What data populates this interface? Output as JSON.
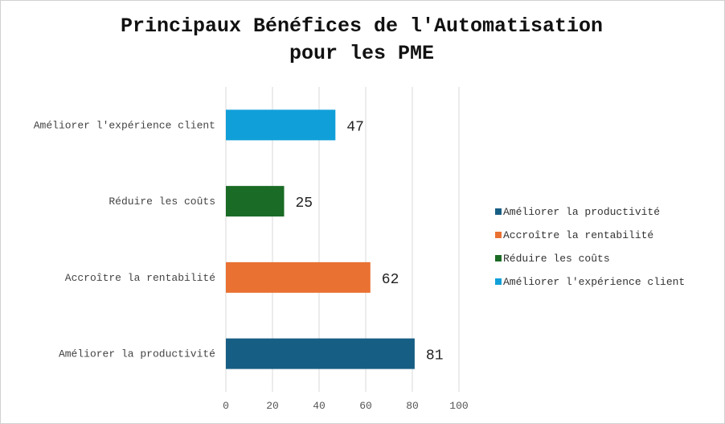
{
  "chart_data": {
    "type": "bar",
    "orientation": "horizontal",
    "title_lines": [
      "Principaux Bénéfices de l'Automatisation",
      "pour les PME"
    ],
    "categories": [
      "Améliorer la productivité",
      "Accroître la rentabilité",
      "Réduire les coûts",
      "Améliorer l'expérience client"
    ],
    "values": [
      81,
      62,
      25,
      47
    ],
    "colors": [
      "#175E85",
      "#E97132",
      "#1A6B25",
      "#119FD9"
    ],
    "xlim": [
      0,
      100
    ],
    "xticks": [
      0,
      20,
      40,
      60,
      80,
      100
    ],
    "grid": true,
    "legend_position": "right",
    "data_labels": true
  }
}
